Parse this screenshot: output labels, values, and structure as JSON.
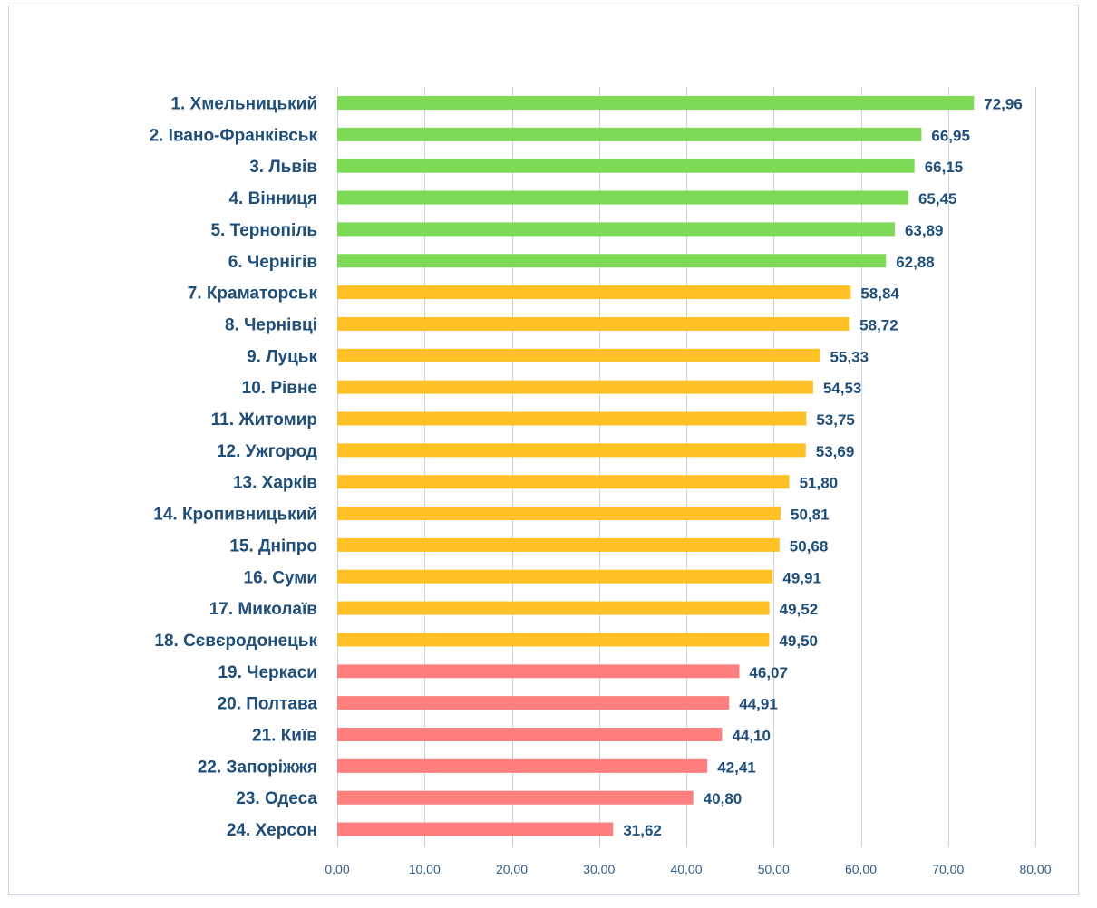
{
  "chart_data": {
    "type": "bar",
    "orientation": "horizontal",
    "categories": [
      "1. Хмельницький",
      "2. Івано-Франківськ",
      "3. Львів",
      "4. Вінниця",
      "5. Тернопіль",
      "6. Чернігів",
      "7. Краматорськ",
      "8. Чернівці",
      "9. Луцьк",
      "10. Рівне",
      "11. Житомир",
      "12. Ужгород",
      "13. Харків",
      "14. Кропивницький",
      "15. Дніпро",
      "16. Суми",
      "17. Миколаїв",
      "18. Сєвєродонецьк",
      "19. Черкаси",
      "20. Полтава",
      "21. Київ",
      "22. Запоріжжя",
      "23. Одеса",
      "24. Херсон"
    ],
    "values": [
      72.96,
      66.95,
      66.15,
      65.45,
      63.89,
      62.88,
      58.84,
      58.72,
      55.33,
      54.53,
      53.75,
      53.69,
      51.8,
      50.81,
      50.68,
      49.91,
      49.52,
      49.5,
      46.07,
      44.91,
      44.1,
      42.41,
      40.8,
      31.62
    ],
    "value_labels": [
      "72,96",
      "66,95",
      "66,15",
      "65,45",
      "63,89",
      "62,88",
      "58,84",
      "58,72",
      "55,33",
      "54,53",
      "53,75",
      "53,69",
      "51,80",
      "50,81",
      "50,68",
      "49,91",
      "49,52",
      "49,50",
      "46,07",
      "44,91",
      "44,10",
      "42,41",
      "40,80",
      "31,62"
    ],
    "bar_colors": [
      "#7ed957",
      "#7ed957",
      "#7ed957",
      "#7ed957",
      "#7ed957",
      "#7ed957",
      "#ffc125",
      "#ffc125",
      "#ffc125",
      "#ffc125",
      "#ffc125",
      "#ffc125",
      "#ffc125",
      "#ffc125",
      "#ffc125",
      "#ffc125",
      "#ffc125",
      "#ffc125",
      "#ff7f7f",
      "#ff7f7f",
      "#ff7f7f",
      "#ff7f7f",
      "#ff7f7f",
      "#ff7f7f"
    ],
    "xlim": [
      0,
      80
    ],
    "x_ticks": [
      0,
      10,
      20,
      30,
      40,
      50,
      60,
      70,
      80
    ],
    "x_tick_labels": [
      "0,00",
      "10,00",
      "20,00",
      "30,00",
      "40,00",
      "50,00",
      "60,00",
      "70,00",
      "80,00"
    ],
    "title": "",
    "xlabel": "",
    "ylabel": "",
    "grid": true,
    "legend": "none",
    "colors": {
      "label_text": "#1f4e79",
      "tick_text": "#2e5c8a",
      "gridline": "#c5d4e6",
      "frame_border": "#c9d3e3"
    }
  }
}
